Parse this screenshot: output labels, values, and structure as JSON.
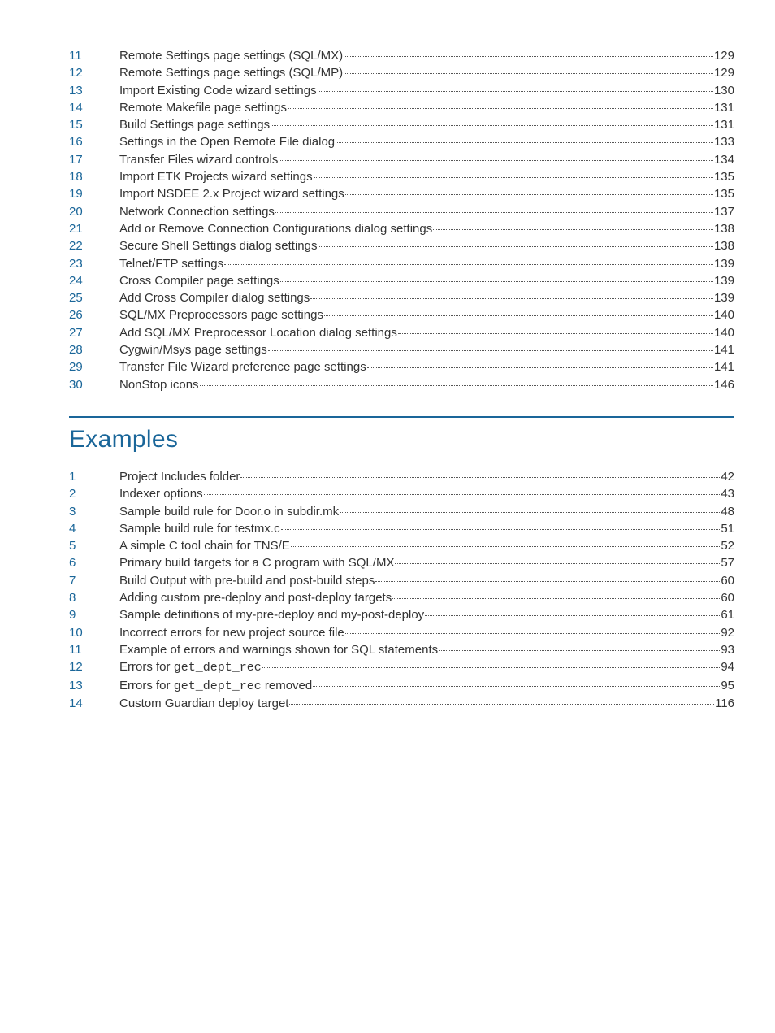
{
  "colors": {
    "accent": "#1a6699",
    "text": "#333333",
    "dots": "#555555",
    "background": "#ffffff"
  },
  "typography": {
    "body_fontsize": 15,
    "body_fontweight": 300,
    "heading_fontsize": 30,
    "heading_fontweight": 300,
    "line_height": 1.42,
    "mono_family": "Courier New"
  },
  "toc_top": {
    "entries": [
      {
        "num": "11",
        "title": "Remote Settings page settings (SQL/MX) ",
        "page": "129"
      },
      {
        "num": "12",
        "title": "Remote Settings page settings (SQL/MP) ",
        "page": "129"
      },
      {
        "num": "13",
        "title": "Import Existing Code wizard settings",
        "page": "130"
      },
      {
        "num": "14",
        "title": "Remote Makefile page settings",
        "page": "131"
      },
      {
        "num": "15",
        "title": "Build Settings page settings",
        "page": "131"
      },
      {
        "num": "16",
        "title": "Settings in the Open Remote File dialog",
        "page": "133"
      },
      {
        "num": "17",
        "title": "Transfer Files wizard controls",
        "page": "134"
      },
      {
        "num": "18",
        "title": "Import ETK Projects wizard settings",
        "page": "135"
      },
      {
        "num": "19",
        "title": "Import NSDEE 2.x Project wizard settings",
        "page": "135"
      },
      {
        "num": "20",
        "title": "Network Connection settings",
        "page": "137"
      },
      {
        "num": "21",
        "title": "Add or Remove Connection Configurations dialog settings",
        "page": "138"
      },
      {
        "num": "22",
        "title": "Secure Shell Settings dialog settings",
        "page": "138"
      },
      {
        "num": "23",
        "title": "Telnet/FTP settings",
        "page": "139"
      },
      {
        "num": "24",
        "title": "Cross Compiler page settings",
        "page": "139"
      },
      {
        "num": "25",
        "title": "Add Cross Compiler dialog settings",
        "page": "139"
      },
      {
        "num": "26",
        "title": "SQL/MX Preprocessors page settings",
        "page": "140"
      },
      {
        "num": "27",
        "title": "Add SQL/MX Preprocessor Location dialog settings",
        "page": "140"
      },
      {
        "num": "28",
        "title": "Cygwin/Msys page settings",
        "page": "141"
      },
      {
        "num": "29",
        "title": "Transfer File Wizard preference page settings",
        "page": "141"
      },
      {
        "num": "30",
        "title": "NonStop icons",
        "page": "146"
      }
    ]
  },
  "examples": {
    "heading": "Examples",
    "entries": [
      {
        "num": "1",
        "title": "Project Includes folder",
        "page": "42"
      },
      {
        "num": "2",
        "title": "Indexer options",
        "page": "43"
      },
      {
        "num": "3",
        "title": "Sample build rule for Door.o in subdir.mk",
        "page": "48"
      },
      {
        "num": "4",
        "title": "Sample build rule for testmx.c ",
        "page": "51"
      },
      {
        "num": "5",
        "title": "A simple C tool chain for TNS/E",
        "page": "52"
      },
      {
        "num": "6",
        "title": "Primary build targets for a C program with SQL/MX",
        "page": "57"
      },
      {
        "num": "7",
        "title": "Build Output with pre-build and post-build steps",
        "page": "60"
      },
      {
        "num": "8",
        "title": "Adding custom pre-deploy and post-deploy targets",
        "page": "60"
      },
      {
        "num": "9",
        "title": "Sample definitions of my-pre-deploy and my-post-deploy",
        "page": "61"
      },
      {
        "num": "10",
        "title": "Incorrect errors for new project source file",
        "page": "92"
      },
      {
        "num": "11",
        "title": "Example of errors and warnings shown for SQL statements",
        "page": "93"
      },
      {
        "num": "12",
        "title_parts": [
          {
            "t": "Errors for ",
            "mono": false
          },
          {
            "t": "get_dept_rec",
            "mono": true
          }
        ],
        "page": "94"
      },
      {
        "num": "13",
        "title_parts": [
          {
            "t": "Errors for ",
            "mono": false
          },
          {
            "t": "get_dept_rec",
            "mono": true
          },
          {
            "t": " removed",
            "mono": false
          }
        ],
        "page": "95"
      },
      {
        "num": "14",
        "title": "Custom Guardian deploy target",
        "page": "116"
      }
    ]
  }
}
